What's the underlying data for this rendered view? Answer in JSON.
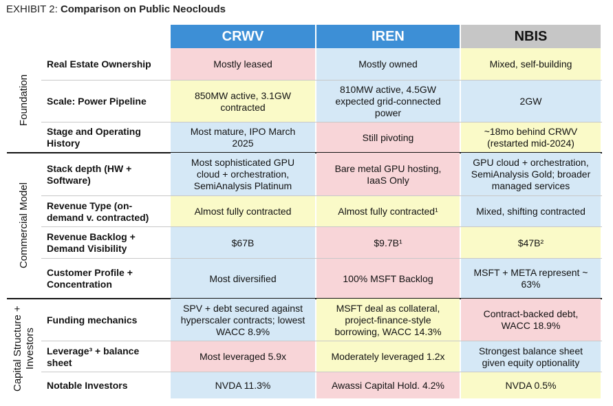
{
  "header": {
    "label": "EXHIBIT 2:",
    "title": "Comparison on Public Neoclouds"
  },
  "columns": [
    "CRWV",
    "IREN",
    "NBIS"
  ],
  "groups": [
    {
      "label": "Foundation",
      "rows": [
        {
          "label": "Real Estate Ownership",
          "cells": [
            "Mostly leased",
            "Mostly owned",
            "Mixed, self-building"
          ]
        },
        {
          "label": "Scale: Power Pipeline",
          "cells": [
            "850MW active, 3.1GW contracted",
            "810MW active, 4.5GW expected grid-connected power",
            "2GW"
          ]
        },
        {
          "label": "Stage and Operating History",
          "cells": [
            "Most mature, IPO March 2025",
            "Still pivoting",
            "~18mo behind CRWV (restarted mid-2024)"
          ]
        }
      ]
    },
    {
      "label": "Commercial Model",
      "rows": [
        {
          "label": "Stack depth (HW + Software)",
          "cells": [
            "Most sophisticated GPU cloud + orchestration, SemiAnalysis Platinum",
            "Bare metal GPU hosting, IaaS Only",
            "GPU cloud + orchestration, SemiAnalysis Gold; broader managed services"
          ]
        },
        {
          "label": "Revenue Type (on-demand v. contracted)",
          "cells": [
            "Almost fully contracted",
            "Almost fully contracted¹",
            "Mixed, shifting contracted"
          ]
        },
        {
          "label": "Revenue Backlog + Demand Visibility",
          "cells": [
            "$67B",
            "$9.7B¹",
            "$47B²"
          ]
        },
        {
          "label": "Customer Profile + Concentration",
          "cells": [
            "Most diversified",
            "100% MSFT Backlog",
            "MSFT + META represent ~ 63%"
          ]
        }
      ]
    },
    {
      "label": "Capital Structure + Investors",
      "rows": [
        {
          "label": "Funding mechanics",
          "cells": [
            "SPV + debt secured against hyperscaler contracts; lowest WACC 8.9%",
            "MSFT deal as collateral, project-finance-style borrowing, WACC 14.3%",
            "Contract-backed debt, WACC 18.9%"
          ]
        },
        {
          "label": "Leverage³ + balance sheet",
          "cells": [
            "Most leveraged 5.9x",
            "Moderately leveraged 1.2x",
            "Strongest balance sheet given equity optionality"
          ]
        },
        {
          "label": "Notable Investors",
          "cells": [
            "NVDA 11.3%",
            "Awassi Capital Hold. 4.2%",
            "NVDA 0.5%"
          ]
        }
      ]
    }
  ]
}
